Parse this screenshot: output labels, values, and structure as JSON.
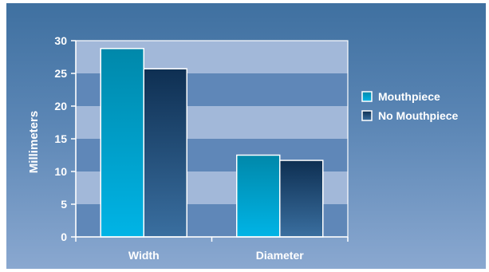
{
  "chart_data": {
    "type": "bar",
    "categories": [
      "Width",
      "Diameter"
    ],
    "series": [
      {
        "name": "Mouthpiece",
        "values": [
          28.8,
          12.5
        ],
        "color": "#00a8d8"
      },
      {
        "name": "No Mouthpiece",
        "values": [
          25.7,
          11.7
        ],
        "color": "#1a4a78"
      }
    ],
    "xlabel": "",
    "ylabel": "Millimeters",
    "ylim": [
      0,
      30
    ],
    "yticks": [
      0,
      5,
      10,
      15,
      20,
      25,
      30
    ],
    "grid": "alternating bands",
    "legend": "right"
  }
}
